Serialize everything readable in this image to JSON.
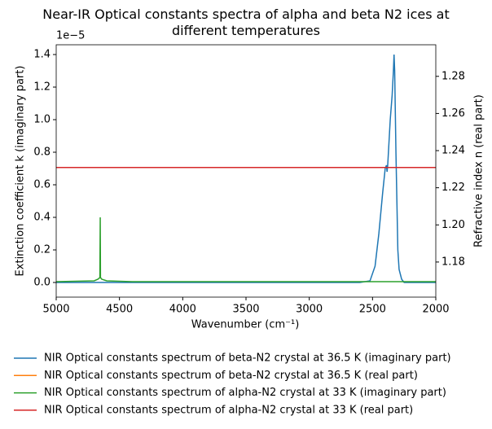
{
  "chart_data": {
    "type": "line",
    "title": "Near-IR Optical constants spectra of alpha and beta N2 ices at different temperatures",
    "xlabel": "Wavenumber (cm⁻¹)",
    "ylabel": "Extinction coefficient k (imaginary part)",
    "y2label": "Refractive index n (real part)",
    "y_offset_text": "1e−5",
    "xlim": [
      5000,
      2000
    ],
    "xticks": [
      5000,
      4500,
      4000,
      3500,
      3000,
      2500,
      2000
    ],
    "ylim": [
      -0.09,
      1.46
    ],
    "yticks": [
      {
        "value": 0,
        "label": "0.0"
      },
      0.2,
      0.4,
      0.6,
      0.8,
      {
        "value": 1,
        "label": "1.0"
      },
      1.2,
      1.4
    ],
    "y2lim": [
      1.1611,
      1.297
    ],
    "y2ticks": [
      1.18,
      {
        "value": 1.2,
        "label": "1.20"
      },
      1.22,
      1.24,
      1.26,
      1.28
    ],
    "series": [
      {
        "name": "NIR Optical constants spectrum of beta-N2 crystal at 36.5 K (imaginary part)",
        "color": "#1f77b4",
        "x": [
          5000,
          2600,
          2520,
          2480,
          2450,
          2420,
          2400,
          2390,
          2385,
          2380,
          2360,
          2345,
          2335,
          2330,
          2325,
          2315,
          2300,
          2290,
          2270,
          2250,
          2000
        ],
        "values": [
          0,
          0,
          0.01,
          0.1,
          0.3,
          0.55,
          0.7,
          0.72,
          0.68,
          0.72,
          1.0,
          1.15,
          1.3,
          1.4,
          1.3,
          0.8,
          0.2,
          0.08,
          0.02,
          0,
          0
        ]
      },
      {
        "name": "NIR Optical constants spectrum of beta-N2 crystal at 36.5 K (real part)",
        "color": "#ff7f0e",
        "axis": "y2",
        "x": [
          5000,
          2000
        ],
        "values": [
          1.2309,
          1.2309
        ]
      },
      {
        "name": "NIR Optical constants spectrum of alpha-N2 crystal at 33 K (imaginary part)",
        "color": "#2ca02c",
        "x": [
          5000,
          4700,
          4670,
          4655,
          4652,
          4650,
          4640,
          4600,
          4400,
          2000
        ],
        "values": [
          0.005,
          0.01,
          0.02,
          0.03,
          0.4,
          0.03,
          0.02,
          0.01,
          0.005,
          0.005
        ]
      },
      {
        "name": "NIR Optical constants spectrum of alpha-N2 crystal at 33 K (real part)",
        "color": "#d62728",
        "axis": "y2",
        "x": [
          5000,
          2000
        ],
        "values": [
          1.2309,
          1.2309
        ]
      }
    ]
  }
}
